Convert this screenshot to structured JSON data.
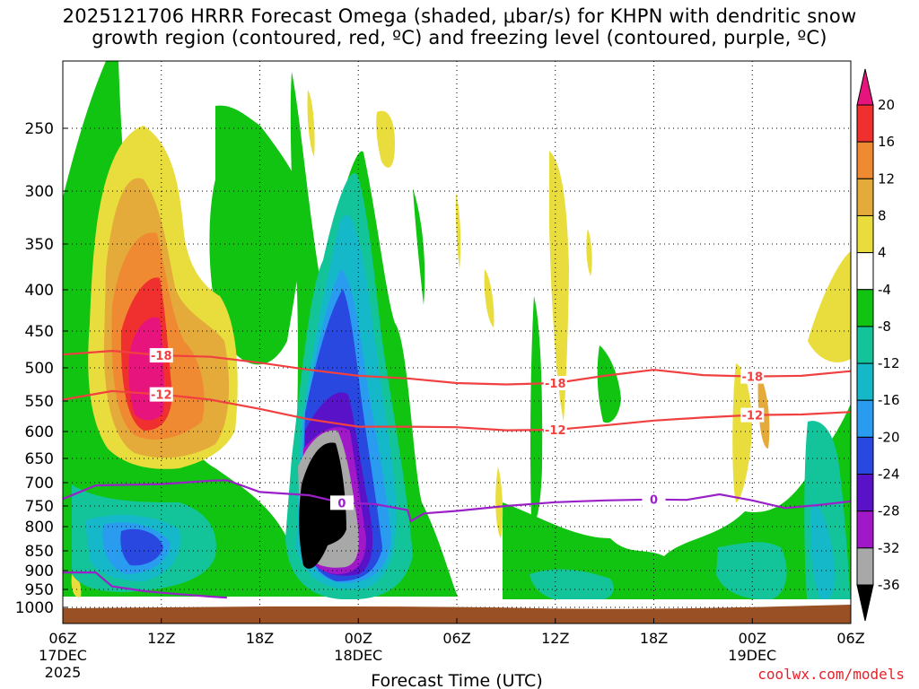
{
  "chart_data": {
    "type": "heatmap",
    "title_line1": "2025121706 HRRR Forecast Omega (shaded, μbar/s) for KHPN with dendritic snow",
    "title_line2": "growth region (contoured, red, ºC) and freezing level (contoured, purple, ºC)",
    "xlabel": "Forecast Time (UTC)",
    "ylabel": "",
    "x_ticks": [
      {
        "hour": 0,
        "label": "06Z",
        "sub": "17DEC",
        "sub2": "2025"
      },
      {
        "hour": 6,
        "label": "12Z"
      },
      {
        "hour": 12,
        "label": "18Z"
      },
      {
        "hour": 18,
        "label": "00Z",
        "sub": "18DEC"
      },
      {
        "hour": 24,
        "label": "06Z"
      },
      {
        "hour": 30,
        "label": "12Z"
      },
      {
        "hour": 36,
        "label": "18Z"
      },
      {
        "hour": 42,
        "label": "00Z",
        "sub": "19DEC"
      },
      {
        "hour": 48,
        "label": "06Z"
      }
    ],
    "xlim": [
      0,
      48
    ],
    "y_levels_hpa": [
      250,
      300,
      350,
      400,
      450,
      500,
      550,
      600,
      650,
      700,
      750,
      800,
      850,
      900,
      950,
      1000
    ],
    "ylim_hpa": [
      1025,
      200
    ],
    "colorbar": {
      "labels": [
        "20",
        "16",
        "12",
        "8",
        "4",
        "-4",
        "-8",
        "-12",
        "-16",
        "-20",
        "-24",
        "-28",
        "-32",
        "-36"
      ],
      "bins": [
        {
          "from": 16,
          "to": 20,
          "color": "#f0302e"
        },
        {
          "from": 12,
          "to": 16,
          "color": "#f08a32"
        },
        {
          "from": 8,
          "to": 12,
          "color": "#e4aa3a"
        },
        {
          "from": 4,
          "to": 8,
          "color": "#e8dd3c"
        },
        {
          "from": -4,
          "to": 4,
          "color": "#ffffff"
        },
        {
          "from": -8,
          "to": -4,
          "color": "#11c411"
        },
        {
          "from": -12,
          "to": -8,
          "color": "#13c49a"
        },
        {
          "from": -16,
          "to": -12,
          "color": "#14b8c8"
        },
        {
          "from": -20,
          "to": -16,
          "color": "#2a9cf0"
        },
        {
          "from": -24,
          "to": -20,
          "color": "#2848e0"
        },
        {
          "from": -28,
          "to": -24,
          "color": "#5a12c8"
        },
        {
          "from": -32,
          "to": -28,
          "color": "#a018c8"
        },
        {
          "from": -36,
          "to": -32,
          "color": "#a8a8a8"
        }
      ],
      "over_color": "#e8147e",
      "under_color": "#000000"
    },
    "contours": [
      {
        "name": "-18 C isotherm",
        "label": "-18",
        "color": "#f04040",
        "points": [
          [
            0,
            482
          ],
          [
            3,
            477
          ],
          [
            6,
            483
          ],
          [
            9,
            485
          ],
          [
            12,
            493
          ],
          [
            15,
            503
          ],
          [
            18,
            512
          ],
          [
            21,
            516
          ],
          [
            24,
            523
          ],
          [
            27,
            525
          ],
          [
            30,
            523
          ],
          [
            33,
            512
          ],
          [
            36,
            503
          ],
          [
            39,
            511
          ],
          [
            42,
            513
          ],
          [
            45,
            512
          ],
          [
            48,
            505
          ]
        ]
      },
      {
        "name": "-12 C isotherm",
        "label": "-12",
        "color": "#f04040",
        "points": [
          [
            0,
            548
          ],
          [
            3,
            535
          ],
          [
            6,
            540
          ],
          [
            9,
            548
          ],
          [
            12,
            563
          ],
          [
            15,
            580
          ],
          [
            18,
            592
          ],
          [
            21,
            592
          ],
          [
            24,
            593
          ],
          [
            27,
            598
          ],
          [
            30,
            597
          ],
          [
            33,
            590
          ],
          [
            36,
            582
          ],
          [
            39,
            577
          ],
          [
            42,
            573
          ],
          [
            45,
            572
          ],
          [
            48,
            568
          ]
        ]
      },
      {
        "name": "0 C freezing level upper",
        "label": "0",
        "color": "#9a20c8",
        "points": [
          [
            0,
            735
          ],
          [
            2,
            706
          ],
          [
            6,
            703
          ],
          [
            9,
            696
          ],
          [
            10,
            695
          ],
          [
            12,
            720
          ],
          [
            15,
            727
          ],
          [
            17,
            743
          ],
          [
            19,
            746
          ],
          [
            21,
            760
          ],
          [
            21.2,
            787
          ],
          [
            22,
            768
          ],
          [
            24,
            762
          ],
          [
            27,
            750
          ],
          [
            30,
            742
          ],
          [
            33,
            738
          ],
          [
            36,
            736
          ],
          [
            38,
            737
          ],
          [
            40,
            725
          ],
          [
            42,
            738
          ],
          [
            44,
            755
          ],
          [
            46,
            748
          ],
          [
            48,
            740
          ]
        ]
      },
      {
        "name": "0 C freezing level lower",
        "label": "",
        "color": "#9a20c8",
        "points": [
          [
            0,
            905
          ],
          [
            2,
            905
          ],
          [
            3,
            942
          ],
          [
            5,
            955
          ],
          [
            7,
            963
          ],
          [
            9,
            970
          ],
          [
            10,
            973
          ]
        ]
      }
    ]
  },
  "credit": "coolwx.com/models"
}
